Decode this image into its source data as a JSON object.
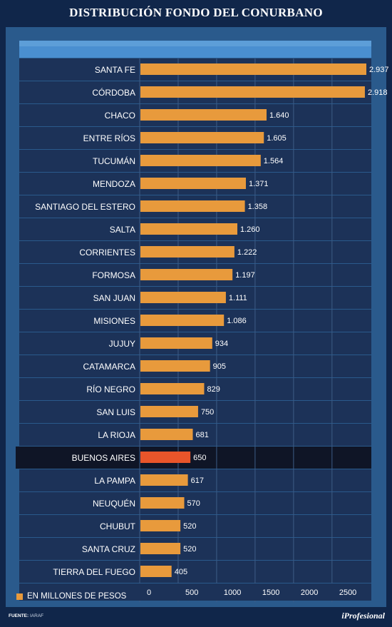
{
  "title": "DISTRIBUCIÓN FONDO DEL CONURBANO",
  "legend_label": "EN MILLONES DE PESOS",
  "source_label": "FUENTE:",
  "source_value": "IARAF",
  "brand": "iProfesional",
  "colors": {
    "background": "#10264a",
    "panel": "#2a5a8c",
    "row": "#1c3258",
    "highlight_row": "#0f1526",
    "bar": "#e89a3c",
    "highlight_bar": "#e8552a",
    "grid": "#3d5c86"
  },
  "chart_data": {
    "type": "bar",
    "orientation": "horizontal",
    "categories": [
      "SANTA FE",
      "CÓRDOBA",
      "CHACO",
      "ENTRE RÍOS",
      "TUCUMÁN",
      "MENDOZA",
      "SANTIAGO DEL ESTERO",
      "SALTA",
      "CORRIENTES",
      "FORMOSA",
      "SAN JUAN",
      "MISIONES",
      "JUJUY",
      "CATAMARCA",
      "RÍO NEGRO",
      "SAN LUIS",
      "LA RIOJA",
      "BUENOS AIRES",
      "LA PAMPA",
      "NEUQUÉN",
      "CHUBUT",
      "SANTA CRUZ",
      "TIERRA DEL FUEGO"
    ],
    "values": [
      2937,
      2918,
      1640,
      1605,
      1564,
      1371,
      1358,
      1260,
      1222,
      1197,
      1111,
      1086,
      934,
      905,
      829,
      750,
      681,
      650,
      617,
      570,
      520,
      520,
      405
    ],
    "value_labels": [
      "2.937",
      "2.918",
      "1.640",
      "1.605",
      "1.564",
      "1.371",
      "1.358",
      "1.260",
      "1.222",
      "1.197",
      "1.111",
      "1.086",
      "934",
      "905",
      "829",
      "750",
      "681",
      "650",
      "617",
      "570",
      "520",
      "520",
      "405"
    ],
    "highlighted": "BUENOS AIRES",
    "xticks": [
      0,
      500,
      1000,
      1500,
      2000,
      2500
    ],
    "xtick_labels": [
      "0",
      "500",
      "1000",
      "1500",
      "2000",
      "2500"
    ],
    "xlim": [
      0,
      2937
    ],
    "legend": "EN MILLONES DE PESOS",
    "legend_position": "bottom-left",
    "grid": true
  }
}
